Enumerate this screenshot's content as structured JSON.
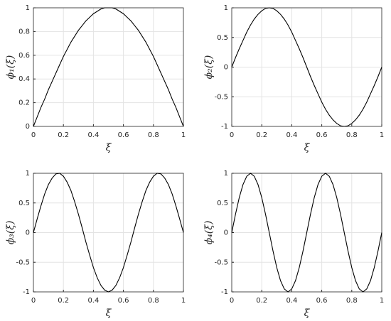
{
  "chart_data": [
    {
      "type": "line",
      "ylabel": "ϕ₁(ξ)",
      "xlabel": "ξ",
      "x": [
        0,
        0.025,
        0.05,
        0.075,
        0.1,
        0.125,
        0.15,
        0.175,
        0.2,
        0.225,
        0.25,
        0.275,
        0.3,
        0.325,
        0.35,
        0.375,
        0.4,
        0.425,
        0.45,
        0.475,
        0.5,
        0.525,
        0.55,
        0.575,
        0.6,
        0.625,
        0.65,
        0.675,
        0.7,
        0.725,
        0.75,
        0.775,
        0.8,
        0.825,
        0.85,
        0.875,
        0.9,
        0.925,
        0.95,
        0.975,
        1
      ],
      "series": [
        {
          "color": "#000000",
          "values": [
            0,
            0.08,
            0.16,
            0.23,
            0.31,
            0.38,
            0.45,
            0.52,
            0.59,
            0.65,
            0.71,
            0.76,
            0.81,
            0.85,
            0.89,
            0.92,
            0.95,
            0.97,
            0.99,
            1,
            1,
            1,
            0.99,
            0.97,
            0.95,
            0.92,
            0.89,
            0.85,
            0.81,
            0.76,
            0.71,
            0.65,
            0.59,
            0.52,
            0.45,
            0.38,
            0.31,
            0.23,
            0.16,
            0.08,
            0
          ]
        }
      ],
      "xlim": [
        0,
        1
      ],
      "xticks": [
        0,
        0.2,
        0.4,
        0.6,
        0.8,
        1
      ],
      "ylim": [
        0,
        1
      ],
      "yticks": [
        0,
        0.2,
        0.4,
        0.6,
        0.8,
        1
      ],
      "grid": true
    },
    {
      "type": "line",
      "ylabel": "ϕ₂(ξ)",
      "xlabel": "ξ",
      "x": [
        0,
        0.025,
        0.05,
        0.075,
        0.1,
        0.125,
        0.15,
        0.175,
        0.2,
        0.225,
        0.25,
        0.275,
        0.3,
        0.325,
        0.35,
        0.375,
        0.4,
        0.425,
        0.45,
        0.475,
        0.5,
        0.525,
        0.55,
        0.575,
        0.6,
        0.625,
        0.65,
        0.675,
        0.7,
        0.725,
        0.75,
        0.775,
        0.8,
        0.825,
        0.85,
        0.875,
        0.9,
        0.925,
        0.95,
        0.975,
        1
      ],
      "series": [
        {
          "color": "#000000",
          "values": [
            0,
            0.16,
            0.31,
            0.45,
            0.59,
            0.71,
            0.81,
            0.89,
            0.95,
            0.99,
            1,
            0.99,
            0.95,
            0.89,
            0.81,
            0.71,
            0.59,
            0.45,
            0.31,
            0.16,
            0,
            -0.16,
            -0.31,
            -0.45,
            -0.59,
            -0.71,
            -0.81,
            -0.89,
            -0.95,
            -0.99,
            -1,
            -0.99,
            -0.95,
            -0.89,
            -0.81,
            -0.71,
            -0.59,
            -0.45,
            -0.31,
            -0.16,
            0
          ]
        }
      ],
      "xlim": [
        0,
        1
      ],
      "xticks": [
        0,
        0.2,
        0.4,
        0.6,
        0.8,
        1
      ],
      "ylim": [
        -1,
        1
      ],
      "yticks": [
        -1,
        -0.5,
        0,
        0.5,
        1
      ],
      "grid": true
    },
    {
      "type": "line",
      "ylabel": "ϕ₃(ξ)",
      "xlabel": "ξ",
      "x": [
        0,
        0.025,
        0.05,
        0.075,
        0.1,
        0.125,
        0.15,
        0.175,
        0.2,
        0.225,
        0.25,
        0.275,
        0.3,
        0.325,
        0.35,
        0.375,
        0.4,
        0.425,
        0.45,
        0.475,
        0.5,
        0.525,
        0.55,
        0.575,
        0.6,
        0.625,
        0.65,
        0.675,
        0.7,
        0.725,
        0.75,
        0.775,
        0.8,
        0.825,
        0.85,
        0.875,
        0.9,
        0.925,
        0.95,
        0.975,
        1
      ],
      "series": [
        {
          "color": "#000000",
          "values": [
            0,
            0.23,
            0.45,
            0.65,
            0.81,
            0.92,
            0.99,
            1,
            0.95,
            0.85,
            0.71,
            0.52,
            0.31,
            0.08,
            -0.16,
            -0.38,
            -0.59,
            -0.76,
            -0.89,
            -0.97,
            -1,
            -0.97,
            -0.89,
            -0.76,
            -0.59,
            -0.38,
            -0.16,
            0.08,
            0.31,
            0.52,
            0.71,
            0.85,
            0.95,
            1,
            0.99,
            0.92,
            0.81,
            0.65,
            0.45,
            0.23,
            0
          ]
        }
      ],
      "xlim": [
        0,
        1
      ],
      "xticks": [
        0,
        0.2,
        0.4,
        0.6,
        0.8,
        1
      ],
      "ylim": [
        -1,
        1
      ],
      "yticks": [
        -1,
        -0.5,
        0,
        0.5,
        1
      ],
      "grid": true
    },
    {
      "type": "line",
      "ylabel": "ϕ₄(ξ)",
      "xlabel": "ξ",
      "x": [
        0,
        0.025,
        0.05,
        0.075,
        0.1,
        0.125,
        0.15,
        0.175,
        0.2,
        0.225,
        0.25,
        0.275,
        0.3,
        0.325,
        0.35,
        0.375,
        0.4,
        0.425,
        0.45,
        0.475,
        0.5,
        0.525,
        0.55,
        0.575,
        0.6,
        0.625,
        0.65,
        0.675,
        0.7,
        0.725,
        0.75,
        0.775,
        0.8,
        0.825,
        0.85,
        0.875,
        0.9,
        0.925,
        0.95,
        0.975,
        1
      ],
      "series": [
        {
          "color": "#000000",
          "values": [
            0,
            0.31,
            0.59,
            0.81,
            0.95,
            1,
            0.95,
            0.81,
            0.59,
            0.31,
            0,
            -0.31,
            -0.59,
            -0.81,
            -0.95,
            -1,
            -0.95,
            -0.81,
            -0.59,
            -0.31,
            0,
            0.31,
            0.59,
            0.81,
            0.95,
            1,
            0.95,
            0.81,
            0.59,
            0.31,
            0,
            -0.31,
            -0.59,
            -0.81,
            -0.95,
            -1,
            -0.95,
            -0.81,
            -0.59,
            -0.31,
            0
          ]
        }
      ],
      "xlim": [
        0,
        1
      ],
      "xticks": [
        0,
        0.2,
        0.4,
        0.6,
        0.8,
        1
      ],
      "ylim": [
        -1,
        1
      ],
      "yticks": [
        -1,
        -0.5,
        0,
        0.5,
        1
      ],
      "grid": true
    }
  ]
}
